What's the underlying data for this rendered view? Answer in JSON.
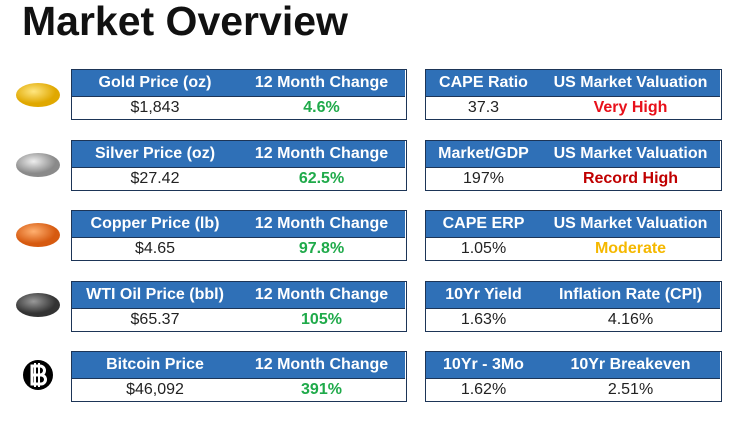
{
  "header": {
    "title": "Market Overview"
  },
  "left_tables": [
    {
      "headers": [
        "Gold Price (oz)",
        "12 Month Change"
      ],
      "values": [
        "$1,843",
        "4.6%"
      ]
    },
    {
      "headers": [
        "Silver Price (oz)",
        "12 Month Change"
      ],
      "values": [
        "$27.42",
        "62.5%"
      ]
    },
    {
      "headers": [
        "Copper Price (lb)",
        "12 Month Change"
      ],
      "values": [
        "$4.65",
        "97.8%"
      ]
    },
    {
      "headers": [
        "WTI Oil Price (bbl)",
        "12 Month Change"
      ],
      "values": [
        "$65.37",
        "105%"
      ]
    },
    {
      "headers": [
        "Bitcoin Price",
        "12 Month Change"
      ],
      "values": [
        "$46,092",
        "391%"
      ]
    }
  ],
  "right_tables": [
    {
      "headers": [
        "CAPE Ratio",
        "US Market Valuation"
      ],
      "values": [
        "37.3",
        "Very High"
      ],
      "accent_color": "#e8101a"
    },
    {
      "headers": [
        "Market/GDP",
        "US Market Valuation"
      ],
      "values": [
        "197%",
        "Record High"
      ],
      "accent_color": "#c00000"
    },
    {
      "headers": [
        "CAPE ERP",
        "US Market Valuation"
      ],
      "values": [
        "1.05%",
        "Moderate"
      ],
      "accent_color": "#f5b800"
    },
    {
      "headers": [
        "10Yr Yield",
        "Inflation Rate (CPI)"
      ],
      "values": [
        "1.63%",
        "4.16%"
      ]
    },
    {
      "headers": [
        "10Yr - 3Mo",
        "10Yr Breakeven"
      ],
      "values": [
        "1.62%",
        "2.51%"
      ]
    }
  ]
}
